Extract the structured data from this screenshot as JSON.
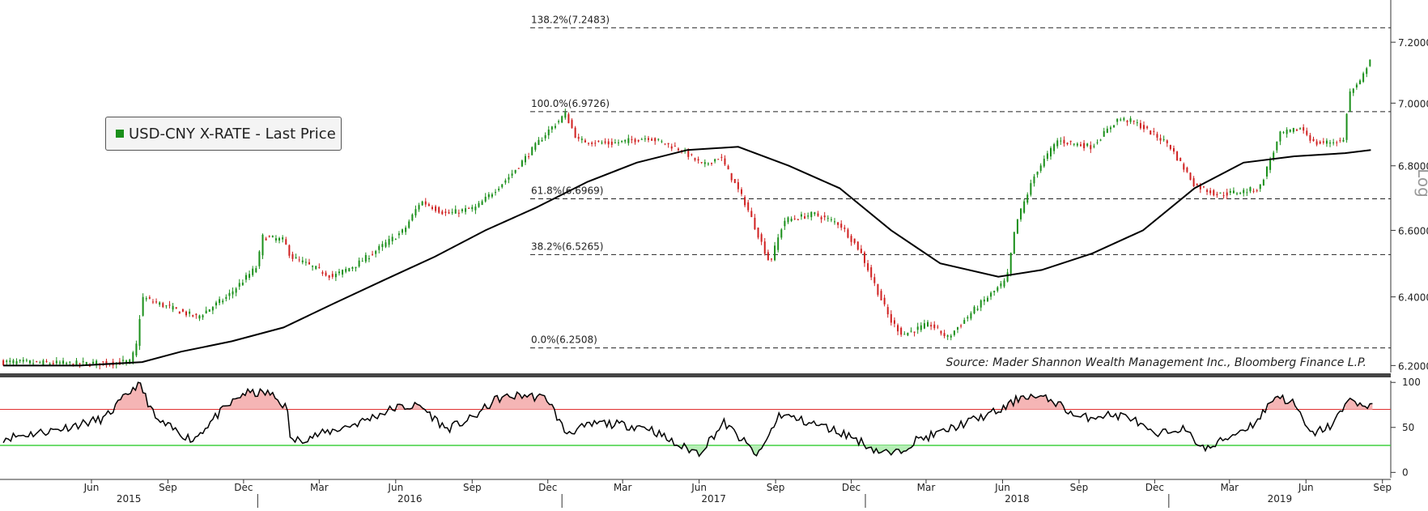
{
  "chart_data": [
    {
      "type": "candlestick",
      "legend": [
        {
          "label": "USD-CNY X-RATE - Last Price",
          "color": "#1a8f1a"
        }
      ],
      "legend_position": "top-left",
      "source": "Source: Mader Shannon Wealth Management Inc., Bloomberg Finance L.P.",
      "y_axis": {
        "side": "right",
        "scale": "log",
        "scale_label": "Log",
        "range": [
          6.18,
          7.32
        ],
        "ticks": [
          "6.2000",
          "6.4000",
          "6.6000",
          "6.8000",
          "7.0000",
          "7.2000"
        ]
      },
      "fib_levels": [
        {
          "label": "138.2%(7.2483)",
          "value": 7.2483
        },
        {
          "label": "100.0%(6.9726)",
          "value": 6.9726
        },
        {
          "label": "61.8%(6.6969)",
          "value": 6.6969
        },
        {
          "label": "38.2%(6.5265)",
          "value": 6.5265
        },
        {
          "label": "0.0%(6.2508)",
          "value": 6.2508
        }
      ],
      "price_path": [
        [
          "2015-03-01",
          6.21
        ],
        [
          "2015-06-01",
          6.205
        ],
        [
          "2015-08-01",
          6.21
        ],
        [
          "2015-08-11",
          6.28
        ],
        [
          "2015-08-13",
          6.4
        ],
        [
          "2015-09-15",
          6.37
        ],
        [
          "2015-10-20",
          6.34
        ],
        [
          "2015-11-25",
          6.4
        ],
        [
          "2015-12-31",
          6.49
        ],
        [
          "2016-01-07",
          6.58
        ],
        [
          "2016-02-01",
          6.57
        ],
        [
          "2016-02-10",
          6.52
        ],
        [
          "2016-03-31",
          6.46
        ],
        [
          "2016-05-01",
          6.5
        ],
        [
          "2016-06-25",
          6.6
        ],
        [
          "2016-07-15",
          6.69
        ],
        [
          "2016-08-15",
          6.65
        ],
        [
          "2016-09-20",
          6.67
        ],
        [
          "2016-10-31",
          6.77
        ],
        [
          "2016-12-15",
          6.91
        ],
        [
          "2016-12-31",
          6.95
        ],
        [
          "2017-01-04",
          6.97
        ],
        [
          "2017-01-20",
          6.88
        ],
        [
          "2017-02-28",
          6.87
        ],
        [
          "2017-04-15",
          6.89
        ],
        [
          "2017-05-25",
          6.85
        ],
        [
          "2017-06-20",
          6.8
        ],
        [
          "2017-07-10",
          6.83
        ],
        [
          "2017-08-10",
          6.68
        ],
        [
          "2017-09-08",
          6.5
        ],
        [
          "2017-09-25",
          6.63
        ],
        [
          "2017-10-31",
          6.65
        ],
        [
          "2017-12-01",
          6.62
        ],
        [
          "2017-12-25",
          6.54
        ],
        [
          "2018-01-31",
          6.33
        ],
        [
          "2018-02-15",
          6.29
        ],
        [
          "2018-03-20",
          6.32
        ],
        [
          "2018-04-10",
          6.28
        ],
        [
          "2018-05-15",
          6.37
        ],
        [
          "2018-06-20",
          6.45
        ],
        [
          "2018-07-01",
          6.62
        ],
        [
          "2018-07-25",
          6.78
        ],
        [
          "2018-08-20",
          6.88
        ],
        [
          "2018-09-30",
          6.86
        ],
        [
          "2018-11-01",
          6.95
        ],
        [
          "2018-11-20",
          6.94
        ],
        [
          "2018-12-31",
          6.87
        ],
        [
          "2019-02-01",
          6.74
        ],
        [
          "2019-03-01",
          6.71
        ],
        [
          "2019-03-31",
          6.72
        ],
        [
          "2019-04-20",
          6.73
        ],
        [
          "2019-05-15",
          6.9
        ],
        [
          "2019-06-10",
          6.92
        ],
        [
          "2019-06-25",
          6.87
        ],
        [
          "2019-07-31",
          6.88
        ],
        [
          "2019-08-05",
          7.03
        ],
        [
          "2019-08-20",
          7.07
        ],
        [
          "2019-09-03",
          7.17
        ]
      ],
      "moving_average": [
        [
          "2015-03-01",
          6.2
        ],
        [
          "2015-06-01",
          6.2
        ],
        [
          "2015-08-15",
          6.21
        ],
        [
          "2015-10-01",
          6.24
        ],
        [
          "2015-12-01",
          6.27
        ],
        [
          "2016-02-01",
          6.31
        ],
        [
          "2016-04-01",
          6.38
        ],
        [
          "2016-06-01",
          6.45
        ],
        [
          "2016-08-01",
          6.52
        ],
        [
          "2016-10-01",
          6.6
        ],
        [
          "2016-12-01",
          6.67
        ],
        [
          "2017-02-01",
          6.75
        ],
        [
          "2017-04-01",
          6.81
        ],
        [
          "2017-06-01",
          6.85
        ],
        [
          "2017-08-01",
          6.86
        ],
        [
          "2017-10-01",
          6.8
        ],
        [
          "2017-12-01",
          6.73
        ],
        [
          "2018-02-01",
          6.6
        ],
        [
          "2018-04-01",
          6.5
        ],
        [
          "2018-06-10",
          6.46
        ],
        [
          "2018-08-01",
          6.48
        ],
        [
          "2018-10-01",
          6.53
        ],
        [
          "2018-12-01",
          6.6
        ],
        [
          "2019-02-01",
          6.73
        ],
        [
          "2019-04-01",
          6.81
        ],
        [
          "2019-06-01",
          6.83
        ],
        [
          "2019-08-01",
          6.84
        ],
        [
          "2019-09-01",
          6.85
        ]
      ]
    },
    {
      "type": "line",
      "indicator": "oscillator",
      "y_axis": {
        "side": "right",
        "range": [
          -6,
          102
        ],
        "ticks": [
          "0",
          "50",
          "100"
        ]
      },
      "bands": [
        {
          "value": 70,
          "color": "#e03030"
        },
        {
          "value": 30,
          "color": "#40d040"
        }
      ],
      "values": [
        [
          "2015-03-01",
          38
        ],
        [
          "2015-05-01",
          47
        ],
        [
          "2015-07-01",
          60
        ],
        [
          "2015-08-11",
          100
        ],
        [
          "2015-09-01",
          58
        ],
        [
          "2015-10-15",
          36
        ],
        [
          "2015-11-15",
          65
        ],
        [
          "2015-12-15",
          88
        ],
        [
          "2016-01-15",
          88
        ],
        [
          "2016-02-05",
          72
        ],
        [
          "2016-02-10",
          34
        ],
        [
          "2016-03-15",
          42
        ],
        [
          "2016-05-01",
          55
        ],
        [
          "2016-06-15",
          72
        ],
        [
          "2016-07-15",
          74
        ],
        [
          "2016-08-15",
          48
        ],
        [
          "2016-09-15",
          60
        ],
        [
          "2016-10-15",
          82
        ],
        [
          "2016-11-15",
          86
        ],
        [
          "2016-12-15",
          82
        ],
        [
          "2017-01-05",
          44
        ],
        [
          "2017-02-15",
          55
        ],
        [
          "2017-04-15",
          50
        ],
        [
          "2017-05-20",
          30
        ],
        [
          "2017-06-15",
          22
        ],
        [
          "2017-07-15",
          55
        ],
        [
          "2017-08-10",
          32
        ],
        [
          "2017-08-25",
          18
        ],
        [
          "2017-09-20",
          65
        ],
        [
          "2017-10-15",
          58
        ],
        [
          "2017-11-15",
          50
        ],
        [
          "2017-12-15",
          40
        ],
        [
          "2018-01-15",
          24
        ],
        [
          "2018-02-05",
          20
        ],
        [
          "2018-03-01",
          35
        ],
        [
          "2018-04-01",
          44
        ],
        [
          "2018-05-01",
          55
        ],
        [
          "2018-06-15",
          70
        ],
        [
          "2018-07-10",
          86
        ],
        [
          "2018-08-15",
          80
        ],
        [
          "2018-09-15",
          60
        ],
        [
          "2018-10-15",
          64
        ],
        [
          "2018-11-15",
          62
        ],
        [
          "2018-12-15",
          40
        ],
        [
          "2019-01-15",
          50
        ],
        [
          "2019-02-15",
          25
        ],
        [
          "2019-03-15",
          40
        ],
        [
          "2019-04-15",
          55
        ],
        [
          "2019-05-10",
          86
        ],
        [
          "2019-06-01",
          76
        ],
        [
          "2019-06-20",
          42
        ],
        [
          "2019-07-15",
          52
        ],
        [
          "2019-08-10",
          84
        ],
        [
          "2019-08-25",
          70
        ],
        [
          "2019-09-03",
          78
        ]
      ]
    }
  ],
  "x_axis": {
    "month_ticks": [
      "Jun",
      "Sep",
      "Dec",
      "Mar",
      "Jun",
      "Sep",
      "Dec",
      "Mar",
      "Jun",
      "Sep",
      "Dec",
      "Mar",
      "Jun",
      "Sep",
      "Dec",
      "Mar",
      "Jun",
      "Sep"
    ],
    "month_dates": [
      "2015-06-15",
      "2015-09-15",
      "2015-12-15",
      "2016-03-15",
      "2016-06-15",
      "2016-09-15",
      "2016-12-15",
      "2017-03-15",
      "2017-06-15",
      "2017-09-15",
      "2017-12-15",
      "2018-03-15",
      "2018-06-15",
      "2018-09-15",
      "2018-12-15",
      "2019-03-15",
      "2019-06-15",
      "2019-09-15"
    ],
    "years": [
      "2015",
      "2016",
      "2017",
      "2018",
      "2019"
    ],
    "range": [
      "2015-02-25",
      "2019-09-25"
    ]
  }
}
